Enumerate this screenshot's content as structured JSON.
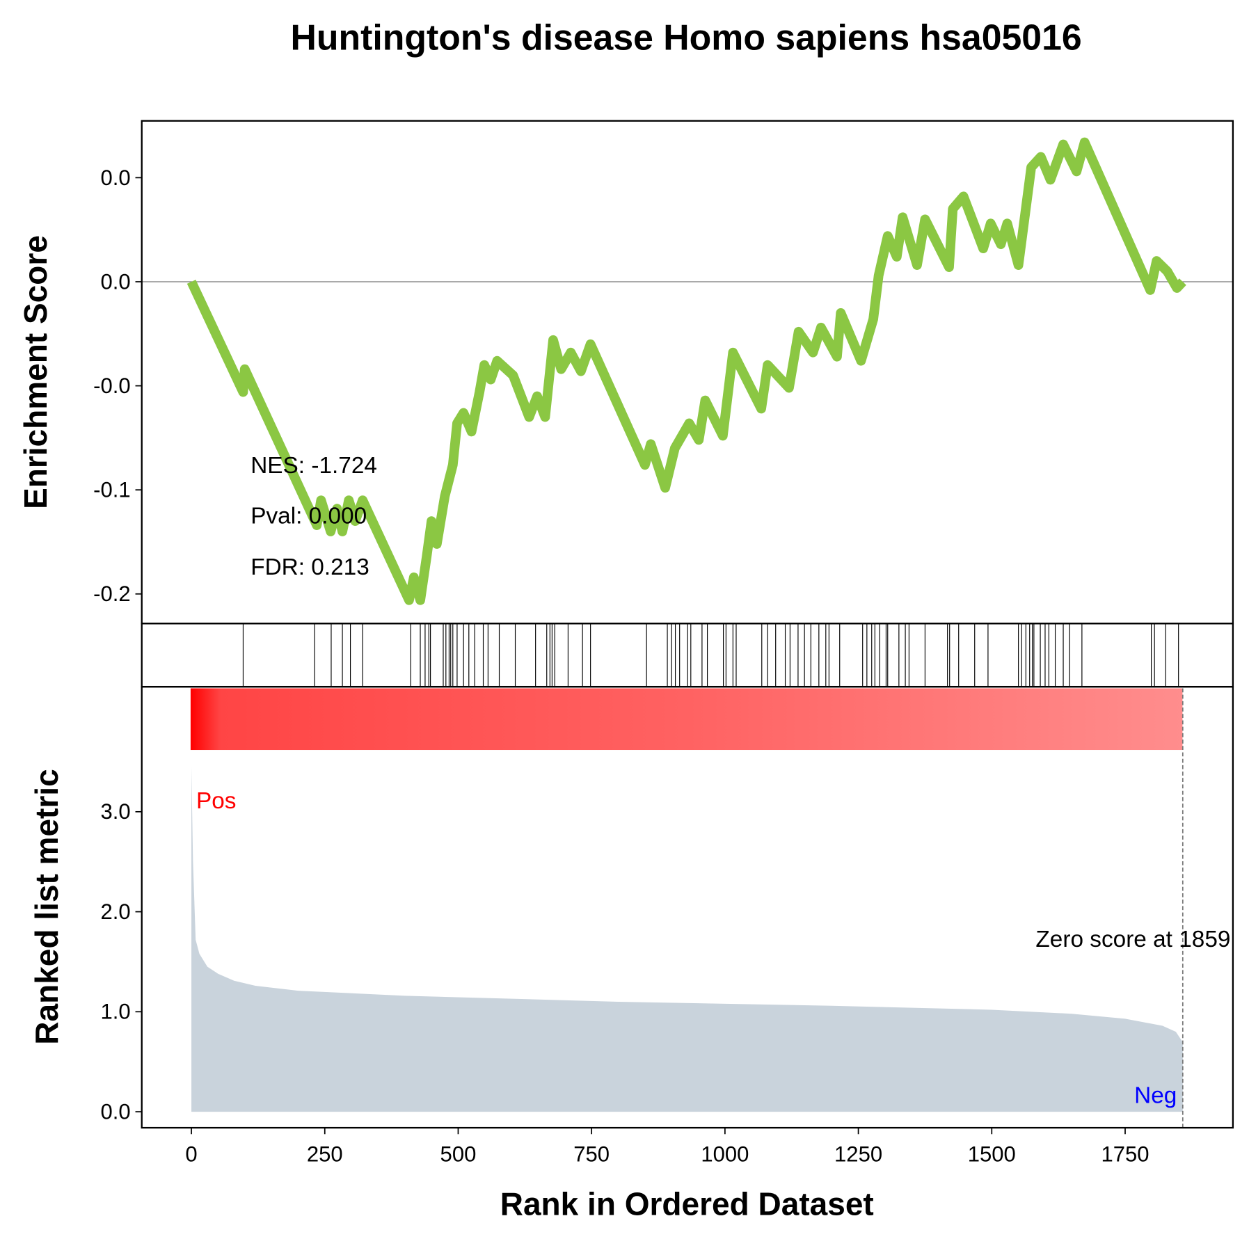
{
  "chart_data": [
    {
      "type": "line",
      "title": "Huntington's disease Homo sapiens hsa05016",
      "ylabel": "Enrichment Score",
      "annotations": [
        "NES: -1.724",
        "Pval: 0.000",
        "FDR: 0.213"
      ],
      "xlim": [
        -93,
        1952
      ],
      "ylim": [
        -0.1642,
        0.0773
      ],
      "yticks": [
        {
          "value": 0.05,
          "label": "0.0"
        },
        {
          "value": 0,
          "label": "0.0"
        },
        {
          "value": -0.05,
          "label": "-0.0"
        },
        {
          "value": -0.1,
          "label": "-0.1"
        },
        {
          "value": -0.15,
          "label": "-0.2"
        }
      ],
      "series": [
        {
          "color": "#8bc743",
          "x": [
            0,
            97,
            100,
            235,
            243,
            261,
            273,
            283,
            295,
            307,
            321,
            408,
            417,
            429,
            441,
            450,
            460,
            475,
            490,
            498,
            510,
            525,
            540,
            549,
            561,
            573,
            603,
            633,
            648,
            663,
            678,
            693,
            711,
            730,
            748,
            850,
            861,
            888,
            906,
            933,
            951,
            963,
            996,
            1015,
            1068,
            1080,
            1120,
            1138,
            1165,
            1180,
            1210,
            1217,
            1255,
            1278,
            1288,
            1305,
            1322,
            1333,
            1360,
            1375,
            1420,
            1427,
            1447,
            1484,
            1498,
            1517,
            1529,
            1550,
            1574,
            1592,
            1610,
            1634,
            1659,
            1674,
            1797,
            1809,
            1829,
            1847,
            1858
          ],
          "values": [
            0,
            -0.053,
            -0.042,
            -0.117,
            -0.105,
            -0.12,
            -0.109,
            -0.12,
            -0.105,
            -0.115,
            -0.105,
            -0.153,
            -0.142,
            -0.153,
            -0.132,
            -0.115,
            -0.126,
            -0.103,
            -0.088,
            -0.068,
            -0.063,
            -0.072,
            -0.053,
            -0.04,
            -0.047,
            -0.038,
            -0.045,
            -0.065,
            -0.055,
            -0.065,
            -0.028,
            -0.042,
            -0.034,
            -0.043,
            -0.03,
            -0.088,
            -0.078,
            -0.099,
            -0.08,
            -0.068,
            -0.076,
            -0.057,
            -0.074,
            -0.034,
            -0.061,
            -0.04,
            -0.051,
            -0.024,
            -0.034,
            -0.022,
            -0.036,
            -0.015,
            -0.038,
            -0.018,
            0.003,
            0.022,
            0.012,
            0.031,
            0.008,
            0.03,
            0.007,
            0.035,
            0.041,
            0.016,
            0.028,
            0.018,
            0.028,
            0.008,
            0.055,
            0.06,
            0.049,
            0.066,
            0.053,
            0.067,
            -0.004,
            0.01,
            0.005,
            -0.003,
            0
          ]
        }
      ]
    },
    {
      "type": "rug",
      "xlim": [
        -93,
        1952
      ],
      "color": "#000000",
      "hits": [
        97,
        231,
        262,
        283,
        298,
        321,
        411,
        429,
        438,
        445,
        448,
        472,
        477,
        483,
        486,
        490,
        498,
        510,
        520,
        531,
        547,
        556,
        577,
        607,
        645,
        666,
        672,
        676,
        681,
        706,
        733,
        748,
        853,
        892,
        900,
        907,
        915,
        930,
        936,
        957,
        967,
        997,
        1002,
        1015,
        1021,
        1069,
        1080,
        1095,
        1113,
        1122,
        1137,
        1149,
        1161,
        1176,
        1189,
        1195,
        1215,
        1258,
        1266,
        1275,
        1281,
        1290,
        1302,
        1305,
        1326,
        1338,
        1345,
        1375,
        1417,
        1421,
        1438,
        1468,
        1493,
        1550,
        1556,
        1564,
        1571,
        1576,
        1579,
        1591,
        1600,
        1607,
        1619,
        1634,
        1646,
        1669,
        1799,
        1805,
        1826,
        1850
      ]
    },
    {
      "type": "area",
      "ylabel": "Ranked list metric",
      "xlabel": "Rank in Ordered Dataset",
      "pos_label": "Pos",
      "neg_label": "Neg",
      "zero_score_label": "Zero score at 1859",
      "zero_score_rank": 1858,
      "xlim": [
        -93,
        1952
      ],
      "ylim": [
        -0.16,
        4.25
      ],
      "xticks": [
        0,
        250,
        500,
        750,
        1000,
        1250,
        1500,
        1750
      ],
      "yticks": [
        {
          "value": 0,
          "label": "0.0"
        },
        {
          "value": 1,
          "label": "1.0"
        },
        {
          "value": 2,
          "label": "2.0"
        },
        {
          "value": 3,
          "label": "3.0"
        }
      ],
      "series": [
        {
          "color": "#c9d3dc",
          "x": [
            0,
            3,
            8,
            15,
            30,
            50,
            80,
            120,
            200,
            400,
            800,
            1200,
            1500,
            1650,
            1750,
            1820,
            1845,
            1855,
            1858
          ],
          "values": [
            3.45,
            2.5,
            1.72,
            1.58,
            1.45,
            1.38,
            1.31,
            1.26,
            1.21,
            1.16,
            1.1,
            1.06,
            1.02,
            0.98,
            0.93,
            0.86,
            0.8,
            0.72,
            0.7
          ]
        }
      ]
    }
  ]
}
